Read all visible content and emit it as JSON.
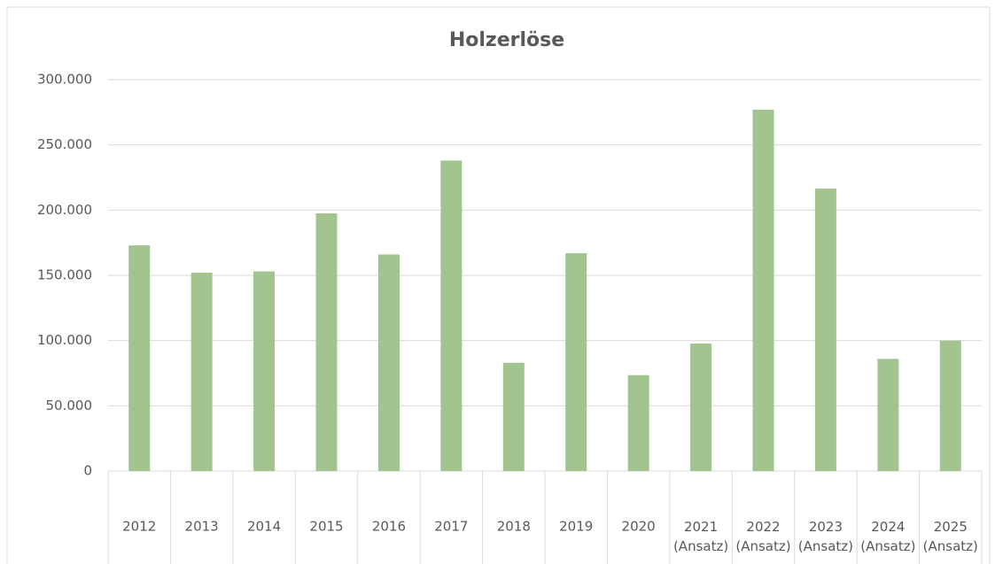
{
  "chart_data": {
    "type": "bar",
    "title": "Holzerlöse",
    "categories": [
      "2012",
      "2013",
      "2014",
      "2015",
      "2016",
      "2017",
      "2018",
      "2019",
      "2020",
      "2021 (Ansatz)",
      "2022 (Ansatz)",
      "2023 (Ansatz)",
      "2024 (Ansatz)",
      "2025 (Ansatz)"
    ],
    "values": [
      173000,
      152000,
      153000,
      197500,
      166000,
      238000,
      83000,
      167000,
      73500,
      97700,
      277000,
      216500,
      86000,
      100000
    ],
    "color": "#a2c48f",
    "ylim": [
      0,
      300000
    ],
    "yticks": [
      0,
      {
        "value": 50000,
        "label": "50.000"
      },
      {
        "value": 100000,
        "label": "100.000"
      },
      {
        "value": 150000,
        "label": "150.000"
      },
      {
        "value": 200000,
        "label": "200.000"
      },
      {
        "value": 250000,
        "label": "250.000"
      },
      {
        "value": 300000,
        "label": "300.000"
      }
    ],
    "grid": true
  }
}
